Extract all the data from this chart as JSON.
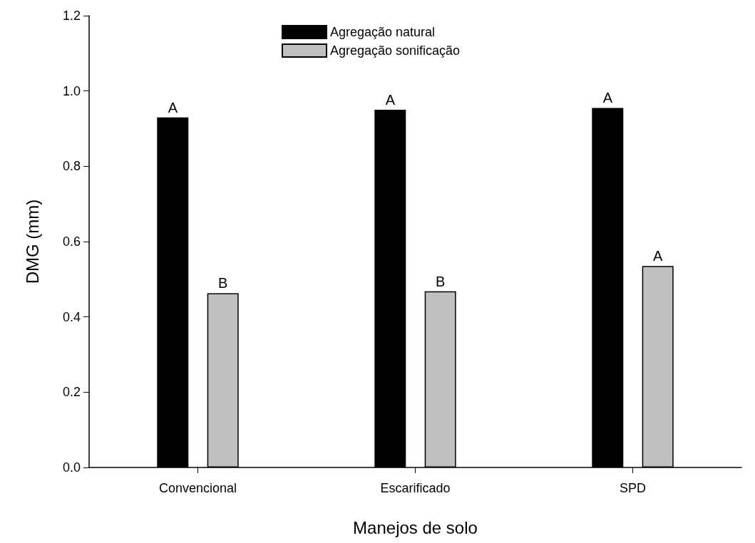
{
  "chart_data": {
    "type": "bar",
    "xlabel": "Manejos de solo",
    "ylabel": "DMG (mm)",
    "categories": [
      "Convencional",
      "Escarificado",
      "SPD"
    ],
    "series": [
      {
        "name": "Agregação natural",
        "color": "#000000",
        "values": [
          0.93,
          0.95,
          0.955
        ],
        "value_labels": [
          "A",
          "A",
          "A"
        ]
      },
      {
        "name": "Agregação sonificação",
        "color": "#c0c0c0",
        "values": [
          0.463,
          0.468,
          0.535
        ],
        "value_labels": [
          "B",
          "B",
          "A"
        ]
      }
    ],
    "ylim": [
      0,
      1.2
    ],
    "yticks": [
      {
        "value": 0,
        "label": "0.0"
      },
      {
        "value": 0.2,
        "label": "0.2"
      },
      {
        "value": 0.4,
        "label": "0.4"
      },
      {
        "value": 0.6,
        "label": "0.6"
      },
      {
        "value": 0.8,
        "label": "0.8"
      },
      {
        "value": 1,
        "label": "1.0"
      },
      {
        "value": 1.2,
        "label": "1.2"
      }
    ],
    "grid": false,
    "legend": "top"
  }
}
